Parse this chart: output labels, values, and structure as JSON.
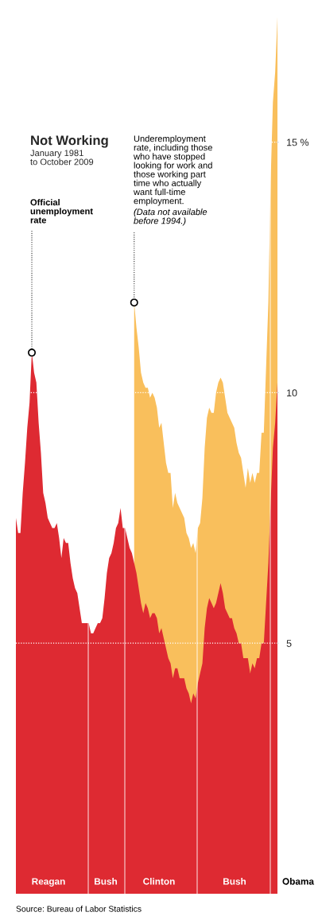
{
  "chart_data": {
    "type": "area",
    "title": "Not Working",
    "subtitle": "January 1981\nto October 2009",
    "categories": [
      null,
      null,
      null,
      null,
      null,
      null,
      null,
      null,
      null,
      null,
      null,
      null,
      null,
      null,
      null,
      null,
      null,
      null,
      null,
      null,
      null,
      null,
      null,
      null,
      null,
      null,
      null,
      null,
      null,
      null,
      null,
      null,
      null,
      null,
      null,
      null,
      null,
      null,
      null,
      null,
      null,
      null,
      null,
      null,
      null,
      null,
      null,
      null,
      null,
      null,
      null,
      null,
      null,
      null,
      null,
      null,
      null,
      null,
      null,
      null,
      null,
      null,
      null,
      null,
      null,
      null,
      null,
      null,
      null,
      null,
      null,
      null,
      null,
      null,
      null,
      null,
      null,
      null,
      null,
      null,
      null,
      null,
      null,
      null,
      null,
      null,
      null,
      null,
      null,
      null,
      null,
      null,
      null,
      null,
      null,
      null,
      null,
      null,
      null,
      null,
      null,
      null,
      null,
      null,
      null,
      null,
      null,
      null,
      null,
      null,
      null,
      null,
      null,
      null,
      null,
      null
    ],
    "ylim": [
      0,
      17.6
    ],
    "yticks": [
      5,
      10,
      {
        "value": 15,
        "label": "15 %"
      }
    ],
    "tick_labels": "y",
    "grid": "y",
    "series": [
      {
        "color": "#f9bf5c",
        "values": [
          null,
          null,
          null,
          null,
          null,
          null,
          null,
          null,
          null,
          null,
          null,
          null,
          null,
          null,
          null,
          null,
          null,
          null,
          null,
          null,
          null,
          null,
          null,
          null,
          null,
          null,
          null,
          null,
          null,
          null,
          null,
          null,
          null,
          null,
          null,
          null,
          null,
          null,
          null,
          null,
          null,
          null,
          null,
          null,
          null,
          null,
          null,
          null,
          null,
          null,
          null,
          null,
          11.8,
          11.3,
          10.9,
          10.4,
          10.2,
          10.1,
          10.1,
          9.9,
          10.0,
          9.9,
          9.7,
          9.3,
          9.4,
          9.0,
          8.6,
          8.4,
          8.4,
          7.7,
          8.0,
          7.8,
          7.7,
          7.6,
          7.5,
          7.2,
          7.1,
          6.9,
          7.0,
          6.8,
          7.3,
          7.4,
          7.9,
          8.9,
          9.5,
          9.7,
          9.6,
          9.6,
          10.0,
          10.2,
          10.3,
          10.2,
          9.9,
          9.6,
          9.5,
          9.4,
          9.3,
          9.0,
          8.8,
          8.7,
          8.4,
          8.1,
          8.5,
          8.2,
          8.4,
          8.2,
          8.4,
          8.4,
          9.2,
          9.2,
          10.5,
          11.8,
          14.2,
          15.8,
          16.4,
          17.5
        ]
      },
      {
        "color": "#de2a32",
        "values": [
          7.5,
          7.2,
          7.2,
          8.0,
          8.6,
          9.3,
          9.8,
          10.8,
          10.4,
          10.2,
          9.4,
          8.8,
          8.0,
          7.8,
          7.5,
          7.4,
          7.3,
          7.3,
          7.4,
          7.1,
          6.7,
          7.1,
          7.0,
          7.0,
          6.6,
          6.3,
          6.1,
          6.0,
          5.7,
          5.4,
          5.4,
          5.4,
          5.4,
          5.2,
          5.2,
          5.3,
          5.4,
          5.4,
          5.5,
          5.9,
          6.4,
          6.7,
          6.8,
          7.0,
          7.3,
          7.4,
          7.7,
          7.3,
          7.3,
          7.1,
          6.9,
          6.8,
          6.6,
          6.4,
          6.1,
          5.8,
          5.6,
          5.8,
          5.7,
          5.5,
          5.6,
          5.6,
          5.5,
          5.2,
          5.3,
          5.1,
          4.9,
          4.7,
          4.6,
          4.3,
          4.5,
          4.5,
          4.3,
          4.3,
          4.3,
          4.1,
          4.0,
          3.8,
          4.0,
          3.9,
          4.2,
          4.4,
          4.6,
          5.3,
          5.7,
          5.9,
          5.8,
          5.7,
          5.8,
          6.0,
          6.2,
          6.0,
          5.7,
          5.6,
          5.5,
          5.5,
          5.3,
          5.2,
          5.0,
          5.0,
          4.7,
          4.7,
          4.7,
          4.4,
          4.6,
          4.5,
          4.7,
          4.7,
          5.0,
          5.0,
          5.8,
          6.6,
          7.8,
          8.9,
          9.4,
          10.2
        ]
      }
    ],
    "annotations": [
      "Official\nunemployment\nrate",
      "Underemployment\nrate, including those\nwho have stopped\nlooking for work and\nthose working part\ntime who actually\nwant full-time\nemployment.",
      "(Data not available\nbefore 1994.)",
      "Reagan",
      "Bush",
      "Clinton",
      "Bush",
      "Obama",
      "Source: Bureau of Labor Statistics"
    ]
  }
}
